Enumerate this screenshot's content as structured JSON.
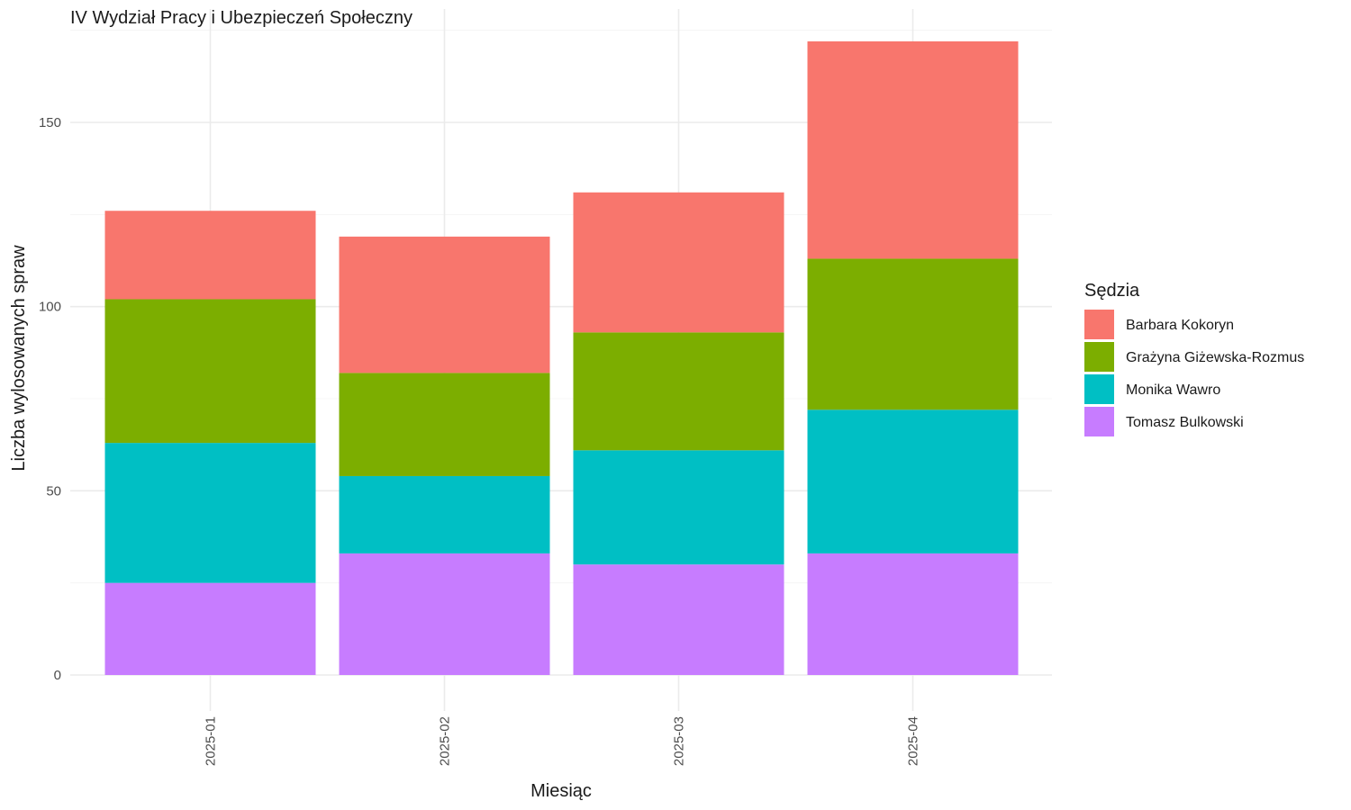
{
  "chart_data": {
    "type": "bar",
    "stacked": true,
    "title": "IV Wydział Pracy i Ubezpieczeń Społeczny",
    "xlabel": "Miesiąc",
    "ylabel": "Liczba wylosowanych spraw",
    "categories": [
      "2025-01",
      "2025-02",
      "2025-03",
      "2025-04"
    ],
    "ylim": [
      0,
      175
    ],
    "yticks": [
      0,
      50,
      100,
      150
    ],
    "grid": true,
    "legend": {
      "title": "Sędzia",
      "position": "right"
    },
    "series": [
      {
        "name": "Tomasz Bulkowski",
        "color": "#C77CFF",
        "values": [
          25,
          33,
          30,
          33
        ]
      },
      {
        "name": "Monika Wawro",
        "color": "#00BFC4",
        "values": [
          38,
          21,
          31,
          39
        ]
      },
      {
        "name": "Grażyna Giżewska-Rozmus",
        "color": "#7CAE00",
        "values": [
          39,
          28,
          32,
          41
        ]
      },
      {
        "name": "Barbara Kokoryn",
        "color": "#F8766D",
        "values": [
          24,
          37,
          38,
          59
        ]
      }
    ],
    "legend_order": [
      "Barbara Kokoryn",
      "Grażyna Giżewska-Rozmus",
      "Monika Wawro",
      "Tomasz Bulkowski"
    ]
  }
}
